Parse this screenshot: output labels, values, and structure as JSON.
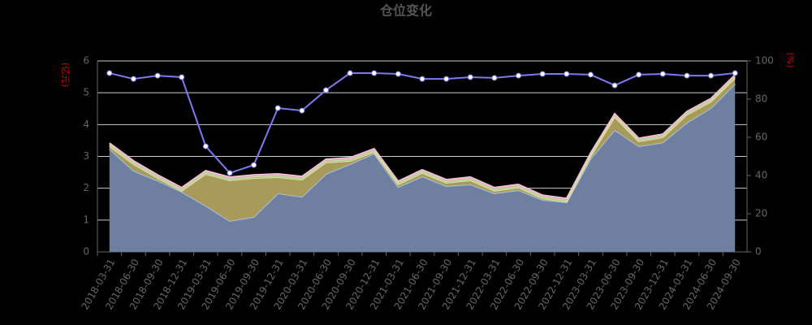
{
  "chart_data": {
    "type": "stacked_area_line",
    "title": "仓位变化",
    "y_label": "(亿元)",
    "y2_label": "(%)",
    "categories": [
      "2018-03-31",
      "2018-06-30",
      "2018-09-30",
      "2018-12-31",
      "2019-03-31",
      "2019-06-30",
      "2019-09-30",
      "2019-12-31",
      "2020-03-31",
      "2020-06-30",
      "2020-09-30",
      "2020-12-31",
      "2021-03-31",
      "2021-06-30",
      "2021-09-30",
      "2021-12-31",
      "2022-03-31",
      "2022-06-30",
      "2022-09-30",
      "2022-12-31",
      "2023-03-31",
      "2023-06-30",
      "2023-09-30",
      "2023-12-31",
      "2024-03-31",
      "2024-06-30",
      "2024-09-30"
    ],
    "ylim": [
      0,
      6
    ],
    "yticks": [
      0,
      1,
      2,
      3,
      4,
      5,
      6
    ],
    "y2lim": [
      0,
      100
    ],
    "y2ticks": [
      0,
      20,
      40,
      60,
      80,
      100
    ],
    "grid": true,
    "series": [
      {
        "color": "#6e7fa0",
        "line_color": "#a8c0e0",
        "values": [
          3.24,
          2.55,
          2.24,
          1.89,
          1.45,
          0.97,
          1.1,
          1.84,
          1.73,
          2.45,
          2.76,
          3.09,
          2.04,
          2.37,
          2.07,
          2.12,
          1.84,
          1.94,
          1.63,
          1.56,
          2.93,
          3.83,
          3.32,
          3.44,
          4.06,
          4.52,
          5.28
        ]
      },
      {
        "color": "#a89a5a",
        "line_color": "#e8e0a0",
        "values": [
          0.08,
          0.21,
          0.08,
          0.03,
          1.0,
          1.28,
          1.22,
          0.51,
          0.54,
          0.36,
          0.1,
          0.05,
          0.08,
          0.11,
          0.1,
          0.13,
          0.08,
          0.08,
          0.05,
          0.02,
          0.08,
          0.41,
          0.15,
          0.16,
          0.25,
          0.2,
          0.18
        ]
      },
      {
        "color": "#9fc890",
        "line_color": "#c8e6a0",
        "values": [
          0.05,
          0.05,
          0.05,
          0.05,
          0.05,
          0.05,
          0.05,
          0.05,
          0.05,
          0.05,
          0.05,
          0.05,
          0.05,
          0.05,
          0.05,
          0.05,
          0.05,
          0.05,
          0.05,
          0.05,
          0.05,
          0.05,
          0.05,
          0.05,
          0.05,
          0.05,
          0.05
        ]
      },
      {
        "color": "#d8a0b8",
        "line_color": "#f0c0d0",
        "values": [
          0.05,
          0.05,
          0.05,
          0.05,
          0.05,
          0.05,
          0.05,
          0.05,
          0.05,
          0.05,
          0.05,
          0.05,
          0.05,
          0.05,
          0.05,
          0.05,
          0.05,
          0.05,
          0.05,
          0.05,
          0.05,
          0.05,
          0.05,
          0.05,
          0.05,
          0.05,
          0.05
        ]
      },
      {
        "type": "line",
        "axis": "y2",
        "color": "#7b7bef",
        "values": [
          93.6,
          90.6,
          92.3,
          91.5,
          55.3,
          41.3,
          45.5,
          75.3,
          74.0,
          84.7,
          93.6,
          93.6,
          93.2,
          90.6,
          90.6,
          91.5,
          91.1,
          92.3,
          93.2,
          93.2,
          92.8,
          87.2,
          92.8,
          93.2,
          92.3,
          92.3,
          93.6
        ]
      }
    ]
  }
}
